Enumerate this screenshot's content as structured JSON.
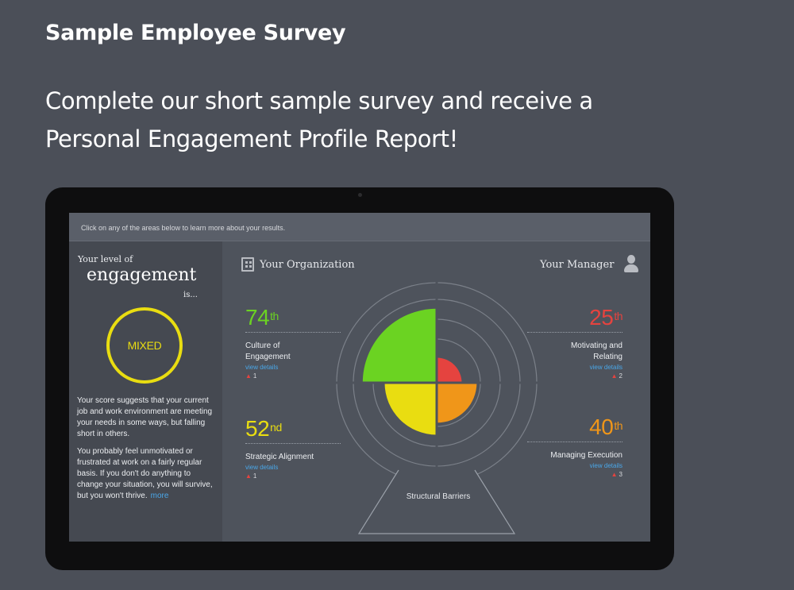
{
  "page": {
    "heading": "Sample Employee Survey",
    "lead": "Complete our short sample survey and receive a Personal Engagement Profile Report!"
  },
  "report": {
    "instruction": "Click on any of the areas below to learn more about your results.",
    "engagement": {
      "level_label": "Your level of",
      "word": "engagement",
      "is_label": "is...",
      "result": "MIXED",
      "description_1": "Your score suggests that your current job and work environment are meeting your needs in some ways, but falling short in others.",
      "description_2": "You probably feel unmotivated or frustrated at work on a fairly regular basis. If you don't do anything to change your situation, you will survive, but you won't thrive.",
      "more_link": "more"
    },
    "headers": {
      "organization": "Your Organization",
      "manager": "Your Manager"
    },
    "metrics": [
      {
        "value": "74",
        "suffix": "th",
        "name": "Culture of Engagement",
        "link": "view details",
        "flags": "1",
        "color": "#6bd322"
      },
      {
        "value": "52",
        "suffix": "nd",
        "name": "Strategic Alignment",
        "link": "view details",
        "flags": "1",
        "color": "#e9dd11"
      },
      {
        "value": "25",
        "suffix": "th",
        "name": "Motivating and Relating",
        "link": "view details",
        "flags": "2",
        "color": "#e5433f"
      },
      {
        "value": "40",
        "suffix": "th",
        "name": "Managing Execution",
        "link": "view details",
        "flags": "3",
        "color": "#f09619"
      }
    ],
    "structural_label": "Structural Barriers",
    "radar_values": {
      "culture": 74,
      "strategic": 52,
      "motivating": 25,
      "managing": 40
    }
  }
}
